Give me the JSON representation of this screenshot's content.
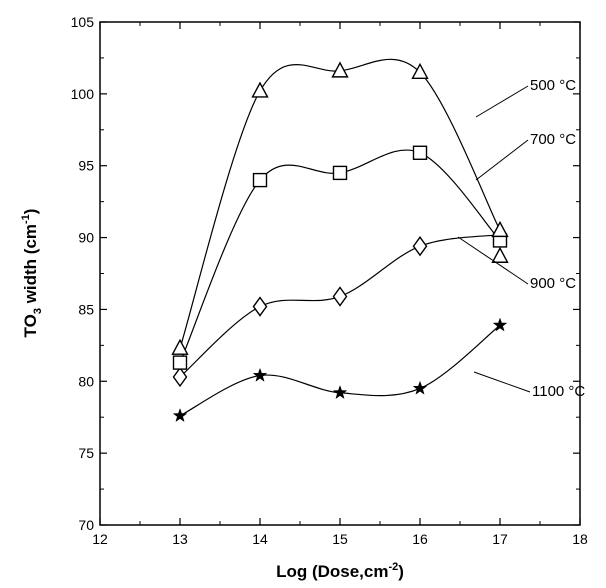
{
  "chart_data": {
    "type": "scatter",
    "xlabel_main": "Log (Dose,cm",
    "xlabel_sup": "-2",
    "xlabel_end": ")",
    "ylabel_main": "TO",
    "ylabel_sub": "3",
    "ylabel_mid": " width (cm",
    "ylabel_sup": "-1",
    "ylabel_end": ")",
    "xlim": [
      12,
      18
    ],
    "ylim": [
      70,
      105
    ],
    "xticks": [
      12,
      13,
      14,
      15,
      16,
      17,
      18
    ],
    "yticks": [
      70,
      75,
      80,
      85,
      90,
      95,
      100,
      105
    ],
    "x": [
      13,
      14,
      15,
      16,
      17
    ],
    "series": [
      {
        "name": "500 °C",
        "marker": "triangle",
        "values": [
          82.3,
          100.2,
          101.6,
          101.5,
          90.5
        ]
      },
      {
        "name": "700 °C",
        "marker": "square",
        "values": [
          81.3,
          94.0,
          94.5,
          95.9,
          89.8
        ]
      },
      {
        "name": "900 °C",
        "marker": "diamond",
        "values": [
          80.3,
          85.2,
          85.9,
          89.4,
          90.2
        ]
      },
      {
        "name": "1100 °C",
        "marker": "star",
        "values": [
          77.6,
          80.4,
          79.2,
          79.5,
          83.9
        ]
      }
    ],
    "extra_markers": [
      {
        "series": "500 °C",
        "marker": "triangle",
        "x": 17,
        "y": 88.7
      }
    ]
  }
}
